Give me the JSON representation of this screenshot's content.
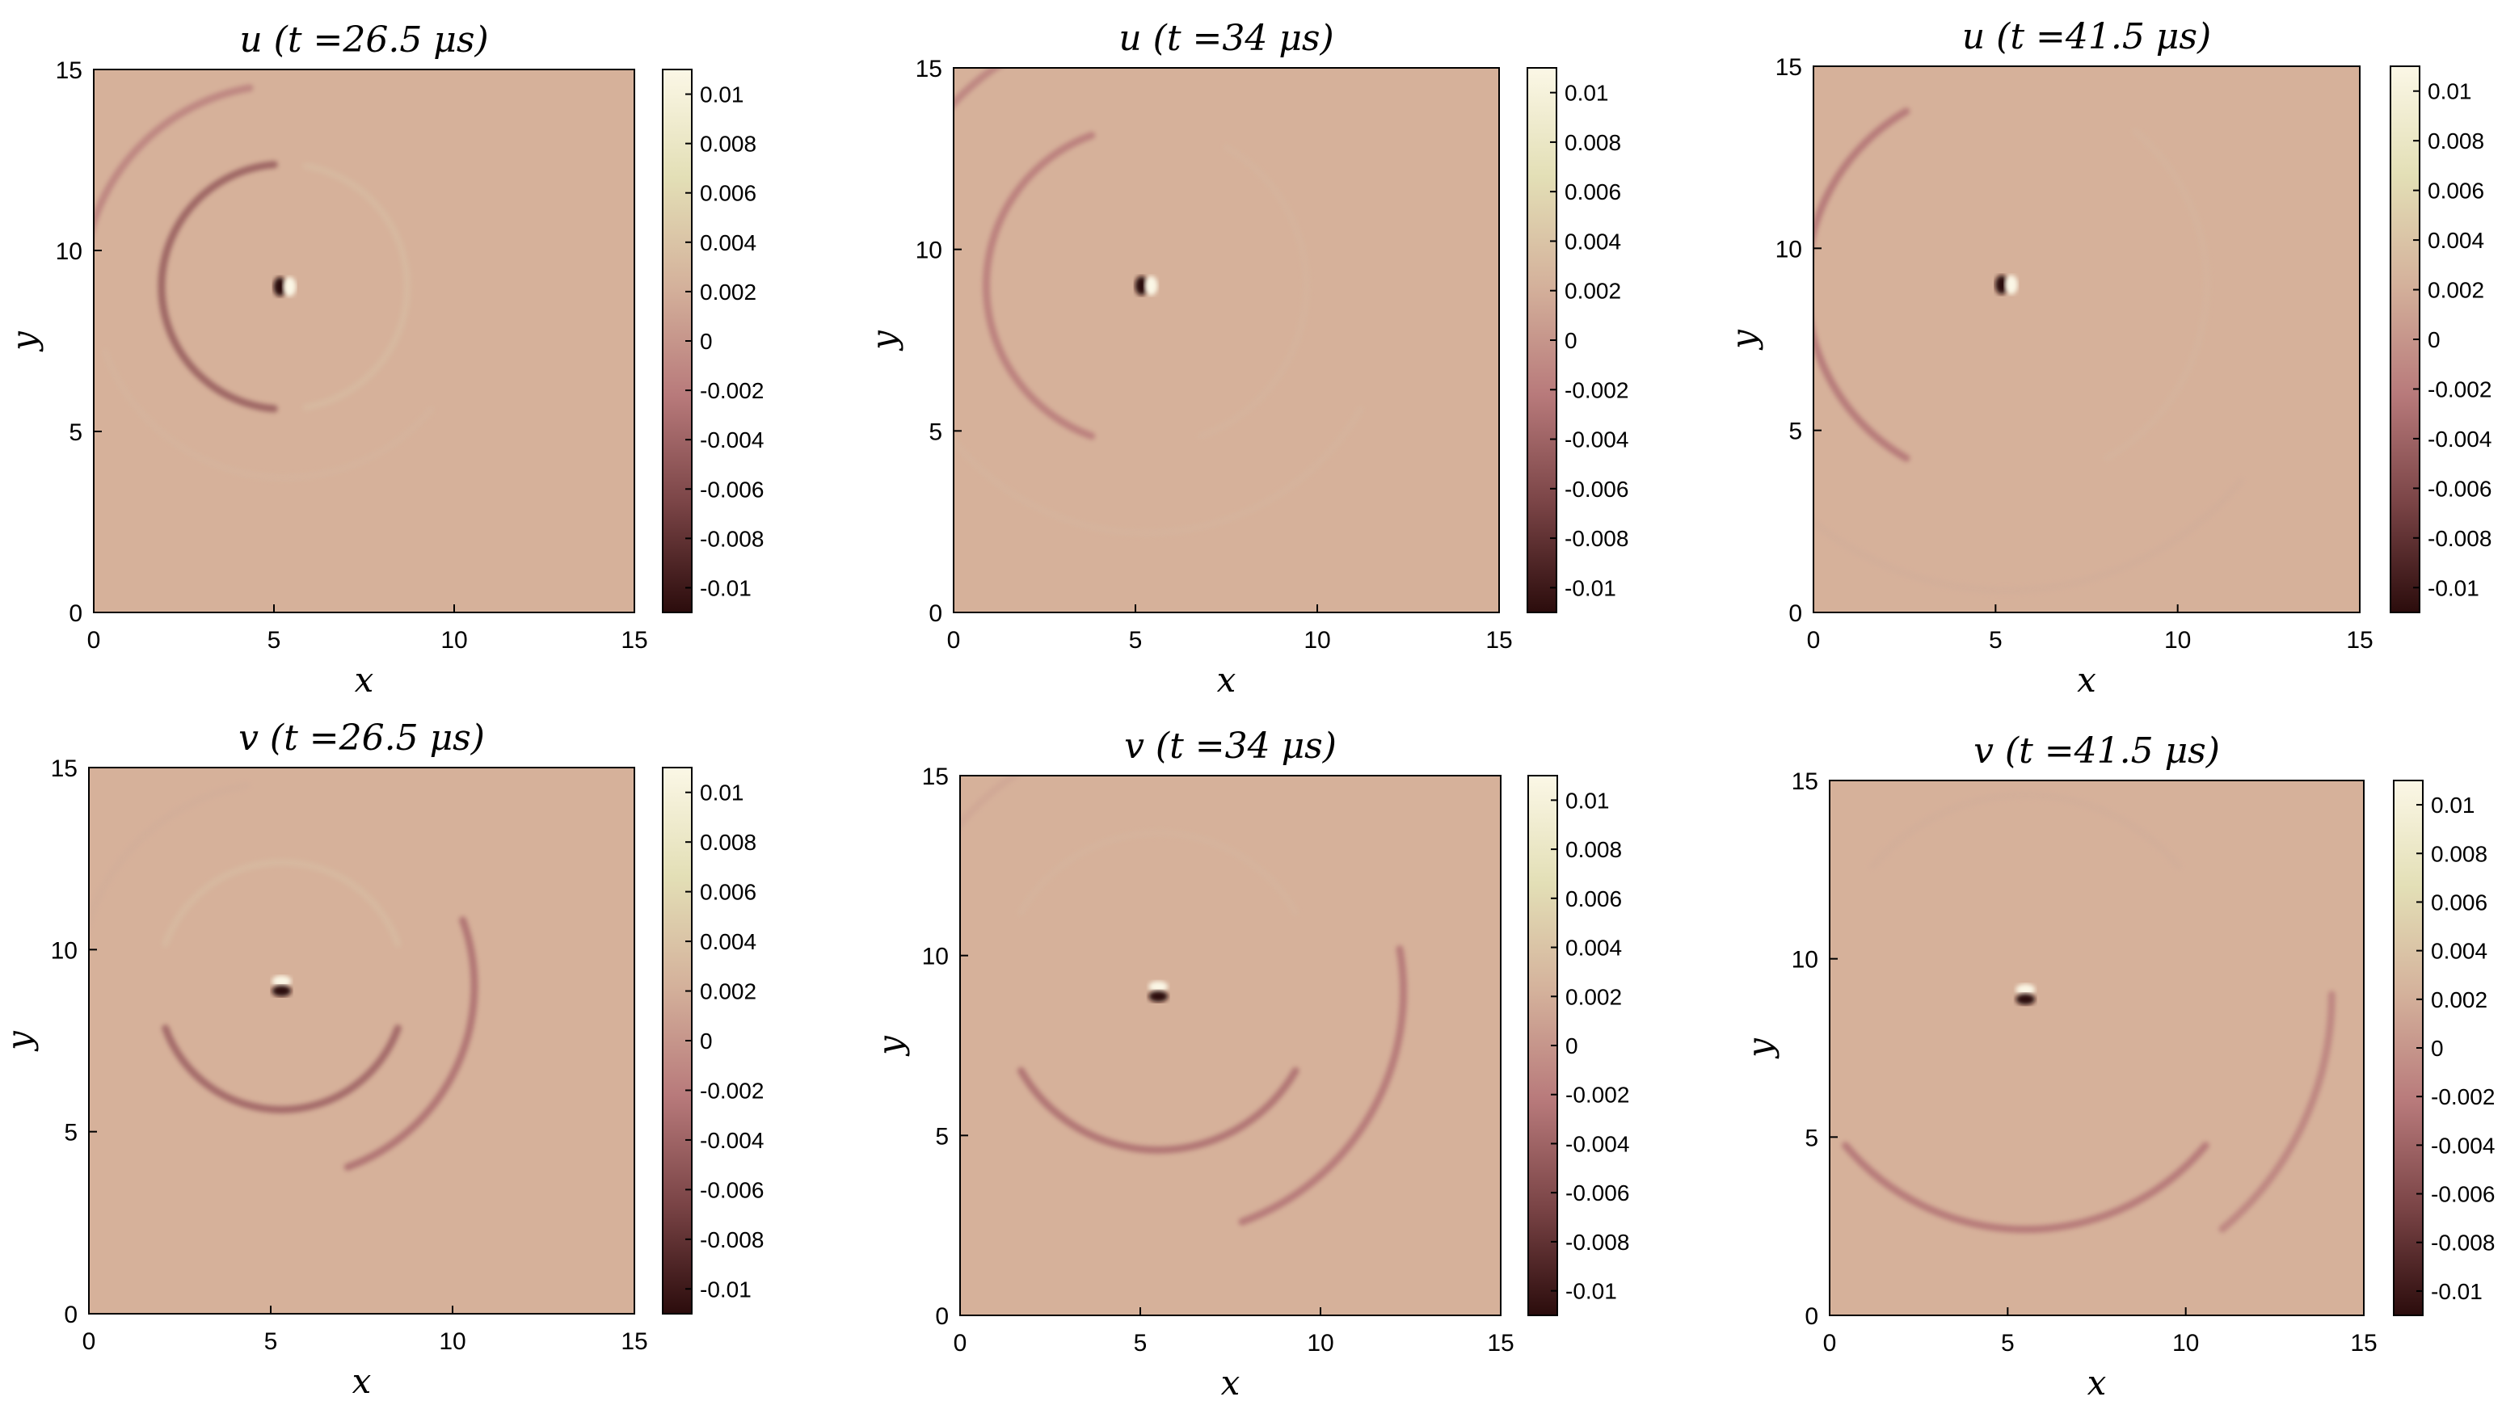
{
  "colormap": [
    "#2b0c0c",
    "#7a4446",
    "#b87a7b",
    "#d4b19b",
    "#e3dfb6",
    "#fbf7e6"
  ],
  "field_base": "#d6b19a",
  "chart_data": [
    {
      "type": "heatmap",
      "field": "u",
      "title": "u (t =26.5 μs)",
      "xlabel": "x",
      "ylabel": "y",
      "xlim": [
        0,
        15
      ],
      "ylim": [
        0,
        15
      ],
      "xticks": [
        "0",
        "5",
        "10",
        "15"
      ],
      "yticks": [
        "0",
        "5",
        "10",
        "15"
      ],
      "clim": [
        -0.011,
        0.011
      ],
      "cbar_ticks": [
        "0.01",
        "0.008",
        "0.006",
        "0.004",
        "0.002",
        "0",
        "-0.002",
        "-0.004",
        "-0.006",
        "-0.008",
        "-0.01"
      ],
      "source": [
        5.3,
        9.0
      ],
      "fronts": [
        {
          "r": 3.4,
          "value": -0.0045,
          "from": 95,
          "to": 265
        },
        {
          "r": 3.4,
          "value": 0.003,
          "from": -80,
          "to": 80
        },
        {
          "r": 5.3,
          "value": 0.0025,
          "from": 200,
          "to": 320
        },
        {
          "r": 5.6,
          "value": -0.0015,
          "from": 100,
          "to": 170
        }
      ]
    },
    {
      "type": "heatmap",
      "field": "u",
      "title": "u (t =34 μs)",
      "xlabel": "x",
      "ylabel": "y",
      "xlim": [
        0,
        15
      ],
      "ylim": [
        0,
        15
      ],
      "xticks": [
        "0",
        "5",
        "10",
        "15"
      ],
      "yticks": [
        "0",
        "5",
        "10",
        "15"
      ],
      "clim": [
        -0.011,
        0.011
      ],
      "cbar_ticks": [
        "0.01",
        "0.008",
        "0.006",
        "0.004",
        "0.002",
        "0",
        "-0.002",
        "-0.004",
        "-0.006",
        "-0.008",
        "-0.01"
      ],
      "source": [
        5.3,
        9.0
      ],
      "fronts": [
        {
          "r": 4.4,
          "value": -0.002,
          "from": 110,
          "to": 250
        },
        {
          "r": 4.4,
          "value": 0.0025,
          "from": -70,
          "to": 60
        },
        {
          "r": 6.8,
          "value": 0.0025,
          "from": 210,
          "to": 330
        },
        {
          "r": 7.3,
          "value": -0.0015,
          "from": 100,
          "to": 160
        }
      ]
    },
    {
      "type": "heatmap",
      "field": "u",
      "title": "u (t =41.5 μs)",
      "xlabel": "x",
      "ylabel": "y",
      "xlim": [
        0,
        15
      ],
      "ylim": [
        0,
        15
      ],
      "xticks": [
        "0",
        "5",
        "10",
        "15"
      ],
      "yticks": [
        "0",
        "5",
        "10",
        "15"
      ],
      "clim": [
        -0.011,
        0.011
      ],
      "cbar_ticks": [
        "0.01",
        "0.008",
        "0.006",
        "0.004",
        "0.002",
        "0",
        "-0.002",
        "-0.004",
        "-0.006",
        "-0.008",
        "-0.01"
      ],
      "source": [
        5.3,
        9.0
      ],
      "fronts": [
        {
          "r": 5.5,
          "value": -0.0025,
          "from": 120,
          "to": 240
        },
        {
          "r": 5.5,
          "value": 0.0025,
          "from": -60,
          "to": 50
        },
        {
          "r": 8.4,
          "value": 0.002,
          "from": 220,
          "to": 320
        },
        {
          "r": 9.0,
          "value": -0.0015,
          "from": 110,
          "to": 150
        }
      ]
    },
    {
      "type": "heatmap",
      "field": "v",
      "title": "v (t =26.5 μs)",
      "xlabel": "x",
      "ylabel": "y",
      "xlim": [
        0,
        15
      ],
      "ylim": [
        0,
        15
      ],
      "xticks": [
        "0",
        "5",
        "10",
        "15"
      ],
      "yticks": [
        "0",
        "5",
        "10",
        "15"
      ],
      "clim": [
        -0.011,
        0.011
      ],
      "cbar_ticks": [
        "0.01",
        "0.008",
        "0.006",
        "0.004",
        "0.002",
        "0",
        "-0.002",
        "-0.004",
        "-0.006",
        "-0.008",
        "-0.01"
      ],
      "source": [
        5.3,
        9.0
      ],
      "fronts": [
        {
          "r": 3.4,
          "value": 0.003,
          "from": 20,
          "to": 160
        },
        {
          "r": 3.4,
          "value": -0.004,
          "from": 200,
          "to": 340
        },
        {
          "r": 5.3,
          "value": -0.003,
          "from": -70,
          "to": 20
        },
        {
          "r": 5.6,
          "value": 0.002,
          "from": 100,
          "to": 170
        }
      ]
    },
    {
      "type": "heatmap",
      "field": "v",
      "title": "v (t =34 μs)",
      "xlabel": "x",
      "ylabel": "y",
      "xlim": [
        0,
        15
      ],
      "ylim": [
        0,
        15
      ],
      "xticks": [
        "0",
        "5",
        "10",
        "15"
      ],
      "yticks": [
        "0",
        "5",
        "10",
        "15"
      ],
      "clim": [
        -0.011,
        0.011
      ],
      "cbar_ticks": [
        "0.01",
        "0.008",
        "0.006",
        "0.004",
        "0.002",
        "0",
        "-0.002",
        "-0.004",
        "-0.006",
        "-0.008",
        "-0.01"
      ],
      "source": [
        5.5,
        9.0
      ],
      "fronts": [
        {
          "r": 4.4,
          "value": 0.0025,
          "from": 30,
          "to": 150
        },
        {
          "r": 4.4,
          "value": -0.003,
          "from": 210,
          "to": 330
        },
        {
          "r": 6.8,
          "value": -0.0025,
          "from": -70,
          "to": 10
        },
        {
          "r": 7.2,
          "value": 0.0015,
          "from": 110,
          "to": 160
        }
      ]
    },
    {
      "type": "heatmap",
      "field": "v",
      "title": "v (t =41.5 μs)",
      "xlabel": "x",
      "ylabel": "y",
      "xlim": [
        0,
        15
      ],
      "ylim": [
        0,
        15
      ],
      "xticks": [
        "0",
        "5",
        "10",
        "15"
      ],
      "yticks": [
        "0",
        "5",
        "10",
        "15"
      ],
      "clim": [
        -0.011,
        0.011
      ],
      "cbar_ticks": [
        "0.01",
        "0.008",
        "0.006",
        "0.004",
        "0.002",
        "0",
        "-0.002",
        "-0.004",
        "-0.006",
        "-0.008",
        "-0.01"
      ],
      "source": [
        5.5,
        9.0
      ],
      "fronts": [
        {
          "r": 5.6,
          "value": 0.002,
          "from": 40,
          "to": 140
        },
        {
          "r": 6.6,
          "value": -0.0025,
          "from": 220,
          "to": 320
        },
        {
          "r": 8.6,
          "value": -0.0015,
          "from": -50,
          "to": 0
        },
        {
          "r": 9.2,
          "value": 0.0015,
          "from": 110,
          "to": 150
        }
      ]
    }
  ]
}
